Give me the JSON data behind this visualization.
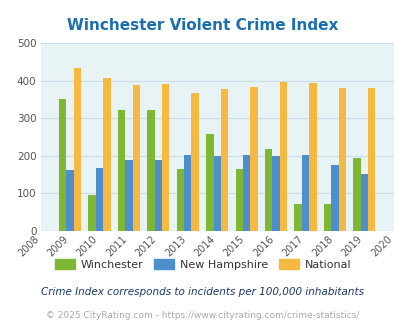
{
  "title": "Winchester Violent Crime Index",
  "title_color": "#1a6faf",
  "years": [
    2009,
    2010,
    2011,
    2012,
    2013,
    2014,
    2015,
    2016,
    2017,
    2018,
    2019
  ],
  "winchester": [
    350,
    95,
    322,
    322,
    165,
    258,
    165,
    218,
    73,
    73,
    193
  ],
  "new_hampshire": [
    162,
    168,
    190,
    190,
    202,
    200,
    202,
    200,
    202,
    175,
    151
  ],
  "national": [
    432,
    406,
    388,
    390,
    368,
    377,
    384,
    397,
    394,
    381,
    381
  ],
  "winchester_color": "#7db733",
  "new_hampshire_color": "#4d8fcc",
  "national_color": "#f5b942",
  "bg_color": "#e8f3f6",
  "ylim": [
    0,
    500
  ],
  "yticks": [
    0,
    100,
    200,
    300,
    400,
    500
  ],
  "tick_color": "#555555",
  "legend_labels": [
    "Winchester",
    "New Hampshire",
    "National"
  ],
  "footnote1": "Crime Index corresponds to incidents per 100,000 inhabitants",
  "footnote2": "© 2025 CityRating.com - https://www.cityrating.com/crime-statistics/",
  "footnote1_color": "#1a3a6a",
  "footnote2_color": "#aaaaaa",
  "bar_width": 0.25,
  "grid_color": "#c8dde8"
}
